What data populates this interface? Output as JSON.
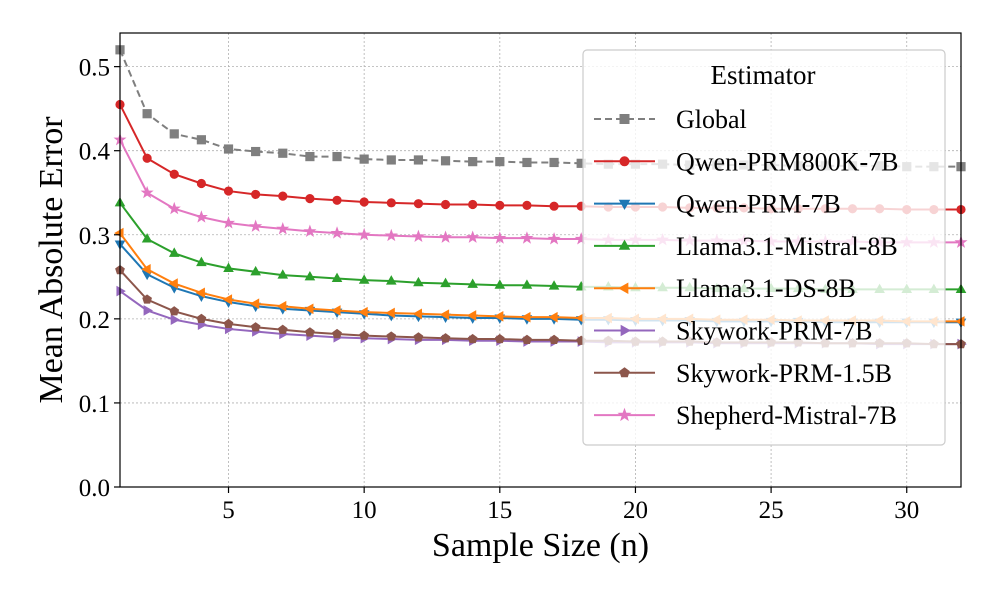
{
  "chart_data": {
    "type": "line",
    "title": "",
    "xlabel": "Sample Size (n)",
    "ylabel": "Mean Absolute Error",
    "xlim": [
      1,
      32
    ],
    "ylim": [
      0.0,
      0.54
    ],
    "xticks": [
      5,
      10,
      15,
      20,
      25,
      30
    ],
    "xtick_labels": [
      "5",
      "10",
      "15",
      "20",
      "25",
      "30"
    ],
    "yticks": [
      0.0,
      0.1,
      0.2,
      0.3,
      0.4,
      0.5
    ],
    "ytick_labels": [
      "0.0",
      "0.1",
      "0.2",
      "0.3",
      "0.4",
      "0.5"
    ],
    "grid": true,
    "legend": {
      "title": "Estimator",
      "placement": "top-right"
    },
    "x": [
      1,
      2,
      3,
      4,
      5,
      6,
      7,
      8,
      9,
      10,
      11,
      12,
      13,
      14,
      15,
      16,
      17,
      18,
      19,
      20,
      21,
      22,
      23,
      24,
      25,
      26,
      27,
      28,
      29,
      30,
      31,
      32
    ],
    "series": [
      {
        "name": "Global",
        "color": "#7f7f7f",
        "marker": "square",
        "dash": true,
        "values": [
          0.52,
          0.444,
          0.42,
          0.413,
          0.402,
          0.399,
          0.397,
          0.393,
          0.393,
          0.39,
          0.389,
          0.389,
          0.388,
          0.387,
          0.387,
          0.386,
          0.386,
          0.385,
          0.384,
          0.384,
          0.384,
          0.383,
          0.383,
          0.383,
          0.383,
          0.382,
          0.382,
          0.382,
          0.382,
          0.381,
          0.381,
          0.381
        ]
      },
      {
        "name": "Qwen-PRM800K-7B",
        "color": "#d62728",
        "marker": "circle",
        "dash": false,
        "values": [
          0.455,
          0.391,
          0.372,
          0.361,
          0.352,
          0.348,
          0.346,
          0.343,
          0.341,
          0.339,
          0.338,
          0.337,
          0.336,
          0.336,
          0.335,
          0.335,
          0.334,
          0.334,
          0.333,
          0.333,
          0.333,
          0.332,
          0.332,
          0.332,
          0.331,
          0.331,
          0.331,
          0.331,
          0.331,
          0.33,
          0.33,
          0.33
        ]
      },
      {
        "name": "Qwen-PRM-7B",
        "color": "#1f77b4",
        "marker": "triangle-down",
        "dash": false,
        "values": [
          0.289,
          0.253,
          0.237,
          0.227,
          0.22,
          0.215,
          0.212,
          0.21,
          0.208,
          0.206,
          0.204,
          0.203,
          0.202,
          0.201,
          0.201,
          0.2,
          0.2,
          0.199,
          0.199,
          0.198,
          0.198,
          0.198,
          0.197,
          0.197,
          0.197,
          0.197,
          0.196,
          0.196,
          0.196,
          0.196,
          0.196,
          0.196
        ]
      },
      {
        "name": "Llama3.1-Mistral-8B",
        "color": "#2ca02c",
        "marker": "triangle-up",
        "dash": false,
        "values": [
          0.338,
          0.295,
          0.278,
          0.267,
          0.26,
          0.256,
          0.252,
          0.25,
          0.248,
          0.246,
          0.245,
          0.243,
          0.242,
          0.241,
          0.24,
          0.24,
          0.239,
          0.238,
          0.238,
          0.237,
          0.237,
          0.237,
          0.236,
          0.236,
          0.236,
          0.236,
          0.235,
          0.235,
          0.235,
          0.235,
          0.235,
          0.235
        ]
      },
      {
        "name": "Llama3.1-DS-8B",
        "color": "#ff7f0e",
        "marker": "triangle-left",
        "dash": false,
        "values": [
          0.302,
          0.259,
          0.242,
          0.231,
          0.223,
          0.218,
          0.215,
          0.212,
          0.21,
          0.208,
          0.207,
          0.206,
          0.205,
          0.204,
          0.203,
          0.202,
          0.202,
          0.201,
          0.201,
          0.2,
          0.2,
          0.2,
          0.199,
          0.199,
          0.199,
          0.198,
          0.198,
          0.198,
          0.198,
          0.197,
          0.197,
          0.197
        ]
      },
      {
        "name": "Skywork-PRM-7B",
        "color": "#9467bd",
        "marker": "triangle-right",
        "dash": false,
        "values": [
          0.233,
          0.21,
          0.199,
          0.193,
          0.188,
          0.185,
          0.182,
          0.18,
          0.178,
          0.177,
          0.176,
          0.175,
          0.175,
          0.174,
          0.174,
          0.173,
          0.173,
          0.173,
          0.172,
          0.172,
          0.172,
          0.172,
          0.171,
          0.171,
          0.171,
          0.171,
          0.171,
          0.171,
          0.17,
          0.17,
          0.17,
          0.17
        ]
      },
      {
        "name": "Skywork-PRM-1.5B",
        "color": "#8c564b",
        "marker": "pentagon",
        "dash": false,
        "values": [
          0.258,
          0.223,
          0.209,
          0.2,
          0.194,
          0.19,
          0.187,
          0.184,
          0.182,
          0.18,
          0.179,
          0.178,
          0.177,
          0.176,
          0.176,
          0.175,
          0.175,
          0.174,
          0.174,
          0.173,
          0.173,
          0.173,
          0.172,
          0.172,
          0.172,
          0.172,
          0.171,
          0.171,
          0.171,
          0.171,
          0.17,
          0.17
        ]
      },
      {
        "name": "Shepherd-Mistral-7B",
        "color": "#e377c2",
        "marker": "star",
        "dash": false,
        "values": [
          0.413,
          0.35,
          0.331,
          0.321,
          0.314,
          0.31,
          0.307,
          0.304,
          0.302,
          0.3,
          0.299,
          0.298,
          0.297,
          0.297,
          0.296,
          0.296,
          0.295,
          0.295,
          0.294,
          0.294,
          0.294,
          0.293,
          0.293,
          0.293,
          0.292,
          0.292,
          0.292,
          0.292,
          0.291,
          0.291,
          0.291,
          0.291
        ]
      }
    ]
  }
}
